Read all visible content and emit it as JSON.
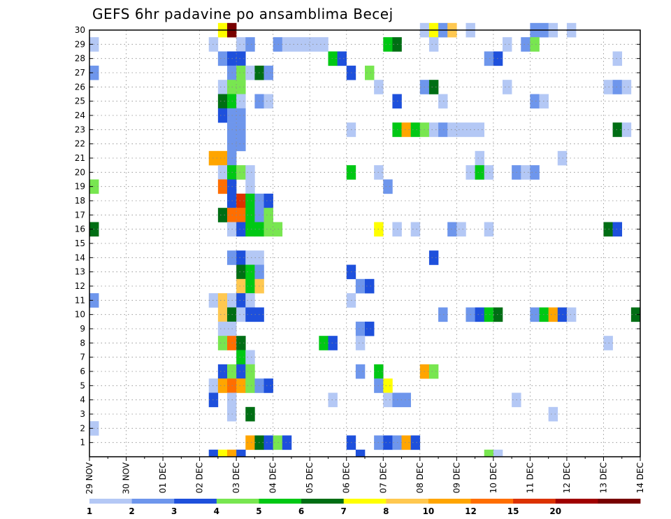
{
  "chart_data": {
    "type": "heatmap",
    "title": "GEFS 6hr padavine po ansamblima Becej",
    "xlabel": "",
    "ylabel": "",
    "x_tick_labels": [
      "29 NOV",
      "30 NOV",
      "01 DEC",
      "02 DEC",
      "03 DEC",
      "04 DEC",
      "05 DEC",
      "06 DEC",
      "07 DEC",
      "08 DEC",
      "09 DEC",
      "10 DEC",
      "11 DEC",
      "12 DEC",
      "13 DEC",
      "14 DEC"
    ],
    "x_unit": "6h step",
    "x_range": [
      0,
      60
    ],
    "y_tick_labels": [
      "1",
      "2",
      "3",
      "4",
      "5",
      "6",
      "7",
      "8",
      "9",
      "10",
      "11",
      "12",
      "13",
      "14",
      "15",
      "16",
      "17",
      "18",
      "19",
      "20",
      "21",
      "22",
      "23",
      "24",
      "25",
      "26",
      "27",
      "28",
      "29",
      "30"
    ],
    "y_range": [
      0,
      30
    ],
    "grid": true,
    "legend": {
      "placement": "bottom",
      "tick_labels": [
        "1",
        "2",
        "3",
        "4",
        "5",
        "6",
        "7",
        "8",
        "10",
        "12",
        "15",
        "20"
      ],
      "colors": [
        "#b4c8f5",
        "#6e96ec",
        "#1e50dc",
        "#78e650",
        "#00c814",
        "#006e14",
        "#ffff00",
        "#ffc850",
        "#ffa500",
        "#ff6e00",
        "#dc3200",
        "#a00000",
        "#780000"
      ]
    },
    "cells": [
      {
        "ens": 30,
        "step": 14,
        "cls": 6
      },
      {
        "ens": 30,
        "step": 15,
        "cls": 12
      },
      {
        "ens": 30,
        "step": 36,
        "cls": 0
      },
      {
        "ens": 30,
        "step": 37,
        "cls": 6
      },
      {
        "ens": 30,
        "step": 38,
        "cls": 1
      },
      {
        "ens": 30,
        "step": 39,
        "cls": 7
      },
      {
        "ens": 30,
        "step": 41,
        "cls": 0
      },
      {
        "ens": 30,
        "step": 48,
        "cls": 1
      },
      {
        "ens": 30,
        "step": 49,
        "cls": 1
      },
      {
        "ens": 30,
        "step": 50,
        "cls": 0
      },
      {
        "ens": 30,
        "step": 52,
        "cls": 0
      },
      {
        "ens": 29,
        "step": 0,
        "cls": 0
      },
      {
        "ens": 29,
        "step": 13,
        "cls": 0
      },
      {
        "ens": 29,
        "step": 16,
        "cls": 0
      },
      {
        "ens": 29,
        "step": 17,
        "cls": 1
      },
      {
        "ens": 29,
        "step": 20,
        "cls": 1
      },
      {
        "ens": 29,
        "step": 21,
        "cls": 0
      },
      {
        "ens": 29,
        "step": 22,
        "cls": 0
      },
      {
        "ens": 29,
        "step": 23,
        "cls": 0
      },
      {
        "ens": 29,
        "step": 24,
        "cls": 0
      },
      {
        "ens": 29,
        "step": 25,
        "cls": 0
      },
      {
        "ens": 29,
        "step": 32,
        "cls": 4
      },
      {
        "ens": 29,
        "step": 33,
        "cls": 5
      },
      {
        "ens": 29,
        "step": 37,
        "cls": 0
      },
      {
        "ens": 29,
        "step": 45,
        "cls": 0
      },
      {
        "ens": 29,
        "step": 47,
        "cls": 1
      },
      {
        "ens": 29,
        "step": 48,
        "cls": 3
      },
      {
        "ens": 28,
        "step": 14,
        "cls": 1
      },
      {
        "ens": 28,
        "step": 15,
        "cls": 2
      },
      {
        "ens": 28,
        "step": 16,
        "cls": 2
      },
      {
        "ens": 28,
        "step": 26,
        "cls": 4
      },
      {
        "ens": 28,
        "step": 27,
        "cls": 2
      },
      {
        "ens": 28,
        "step": 43,
        "cls": 1
      },
      {
        "ens": 28,
        "step": 44,
        "cls": 2
      },
      {
        "ens": 28,
        "step": 57,
        "cls": 0
      },
      {
        "ens": 27,
        "step": 0,
        "cls": 1
      },
      {
        "ens": 27,
        "step": 15,
        "cls": 1
      },
      {
        "ens": 27,
        "step": 16,
        "cls": 3
      },
      {
        "ens": 27,
        "step": 17,
        "cls": 0
      },
      {
        "ens": 27,
        "step": 18,
        "cls": 5
      },
      {
        "ens": 27,
        "step": 19,
        "cls": 1
      },
      {
        "ens": 27,
        "step": 28,
        "cls": 2
      },
      {
        "ens": 27,
        "step": 30,
        "cls": 3
      },
      {
        "ens": 26,
        "step": 14,
        "cls": 0
      },
      {
        "ens": 26,
        "step": 15,
        "cls": 3
      },
      {
        "ens": 26,
        "step": 16,
        "cls": 3
      },
      {
        "ens": 26,
        "step": 31,
        "cls": 0
      },
      {
        "ens": 26,
        "step": 36,
        "cls": 1
      },
      {
        "ens": 26,
        "step": 37,
        "cls": 5
      },
      {
        "ens": 26,
        "step": 45,
        "cls": 0
      },
      {
        "ens": 26,
        "step": 56,
        "cls": 0
      },
      {
        "ens": 26,
        "step": 57,
        "cls": 1
      },
      {
        "ens": 26,
        "step": 58,
        "cls": 0
      },
      {
        "ens": 25,
        "step": 14,
        "cls": 5
      },
      {
        "ens": 25,
        "step": 15,
        "cls": 4
      },
      {
        "ens": 25,
        "step": 16,
        "cls": 0
      },
      {
        "ens": 25,
        "step": 18,
        "cls": 1
      },
      {
        "ens": 25,
        "step": 19,
        "cls": 0
      },
      {
        "ens": 25,
        "step": 33,
        "cls": 2
      },
      {
        "ens": 25,
        "step": 38,
        "cls": 0
      },
      {
        "ens": 25,
        "step": 48,
        "cls": 1
      },
      {
        "ens": 25,
        "step": 49,
        "cls": 0
      },
      {
        "ens": 24,
        "step": 14,
        "cls": 2
      },
      {
        "ens": 24,
        "step": 15,
        "cls": 1
      },
      {
        "ens": 24,
        "step": 16,
        "cls": 1
      },
      {
        "ens": 23,
        "step": 15,
        "cls": 1
      },
      {
        "ens": 23,
        "step": 16,
        "cls": 1
      },
      {
        "ens": 23,
        "step": 28,
        "cls": 0
      },
      {
        "ens": 23,
        "step": 33,
        "cls": 4
      },
      {
        "ens": 23,
        "step": 34,
        "cls": 8
      },
      {
        "ens": 23,
        "step": 35,
        "cls": 4
      },
      {
        "ens": 23,
        "step": 36,
        "cls": 3
      },
      {
        "ens": 23,
        "step": 37,
        "cls": 0
      },
      {
        "ens": 23,
        "step": 38,
        "cls": 1
      },
      {
        "ens": 23,
        "step": 39,
        "cls": 0
      },
      {
        "ens": 23,
        "step": 40,
        "cls": 0
      },
      {
        "ens": 23,
        "step": 41,
        "cls": 0
      },
      {
        "ens": 23,
        "step": 42,
        "cls": 0
      },
      {
        "ens": 23,
        "step": 57,
        "cls": 5
      },
      {
        "ens": 23,
        "step": 58,
        "cls": 0
      },
      {
        "ens": 22,
        "step": 15,
        "cls": 1
      },
      {
        "ens": 22,
        "step": 16,
        "cls": 1
      },
      {
        "ens": 21,
        "step": 13,
        "cls": 8
      },
      {
        "ens": 21,
        "step": 14,
        "cls": 8
      },
      {
        "ens": 21,
        "step": 15,
        "cls": 1
      },
      {
        "ens": 21,
        "step": 42,
        "cls": 0
      },
      {
        "ens": 21,
        "step": 51,
        "cls": 0
      },
      {
        "ens": 20,
        "step": 14,
        "cls": 0
      },
      {
        "ens": 20,
        "step": 15,
        "cls": 4
      },
      {
        "ens": 20,
        "step": 16,
        "cls": 3
      },
      {
        "ens": 20,
        "step": 17,
        "cls": 0
      },
      {
        "ens": 20,
        "step": 28,
        "cls": 4
      },
      {
        "ens": 20,
        "step": 31,
        "cls": 0
      },
      {
        "ens": 20,
        "step": 41,
        "cls": 0
      },
      {
        "ens": 20,
        "step": 42,
        "cls": 4
      },
      {
        "ens": 20,
        "step": 43,
        "cls": 0
      },
      {
        "ens": 20,
        "step": 46,
        "cls": 1
      },
      {
        "ens": 20,
        "step": 47,
        "cls": 0
      },
      {
        "ens": 20,
        "step": 48,
        "cls": 1
      },
      {
        "ens": 19,
        "step": 0,
        "cls": 3
      },
      {
        "ens": 19,
        "step": 14,
        "cls": 9
      },
      {
        "ens": 19,
        "step": 15,
        "cls": 2
      },
      {
        "ens": 19,
        "step": 17,
        "cls": 0
      },
      {
        "ens": 19,
        "step": 32,
        "cls": 1
      },
      {
        "ens": 18,
        "step": 15,
        "cls": 2
      },
      {
        "ens": 18,
        "step": 16,
        "cls": 10
      },
      {
        "ens": 18,
        "step": 17,
        "cls": 4
      },
      {
        "ens": 18,
        "step": 18,
        "cls": 1
      },
      {
        "ens": 18,
        "step": 19,
        "cls": 2
      },
      {
        "ens": 17,
        "step": 14,
        "cls": 5
      },
      {
        "ens": 17,
        "step": 15,
        "cls": 9
      },
      {
        "ens": 17,
        "step": 16,
        "cls": 9
      },
      {
        "ens": 17,
        "step": 17,
        "cls": 4
      },
      {
        "ens": 17,
        "step": 18,
        "cls": 1
      },
      {
        "ens": 17,
        "step": 19,
        "cls": 3
      },
      {
        "ens": 16,
        "step": 0,
        "cls": 5
      },
      {
        "ens": 16,
        "step": 15,
        "cls": 0
      },
      {
        "ens": 16,
        "step": 16,
        "cls": 2
      },
      {
        "ens": 16,
        "step": 17,
        "cls": 4
      },
      {
        "ens": 16,
        "step": 18,
        "cls": 4
      },
      {
        "ens": 16,
        "step": 19,
        "cls": 3
      },
      {
        "ens": 16,
        "step": 20,
        "cls": 3
      },
      {
        "ens": 16,
        "step": 31,
        "cls": 6
      },
      {
        "ens": 16,
        "step": 33,
        "cls": 0
      },
      {
        "ens": 16,
        "step": 35,
        "cls": 0
      },
      {
        "ens": 16,
        "step": 39,
        "cls": 1
      },
      {
        "ens": 16,
        "step": 40,
        "cls": 0
      },
      {
        "ens": 16,
        "step": 43,
        "cls": 0
      },
      {
        "ens": 16,
        "step": 56,
        "cls": 5
      },
      {
        "ens": 16,
        "step": 57,
        "cls": 2
      },
      {
        "ens": 14,
        "step": 15,
        "cls": 1
      },
      {
        "ens": 14,
        "step": 16,
        "cls": 2
      },
      {
        "ens": 14,
        "step": 17,
        "cls": 0
      },
      {
        "ens": 14,
        "step": 18,
        "cls": 0
      },
      {
        "ens": 14,
        "step": 37,
        "cls": 2
      },
      {
        "ens": 13,
        "step": 16,
        "cls": 5
      },
      {
        "ens": 13,
        "step": 17,
        "cls": 4
      },
      {
        "ens": 13,
        "step": 18,
        "cls": 1
      },
      {
        "ens": 13,
        "step": 28,
        "cls": 2
      },
      {
        "ens": 12,
        "step": 16,
        "cls": 7
      },
      {
        "ens": 12,
        "step": 17,
        "cls": 4
      },
      {
        "ens": 12,
        "step": 18,
        "cls": 7
      },
      {
        "ens": 12,
        "step": 29,
        "cls": 1
      },
      {
        "ens": 12,
        "step": 30,
        "cls": 2
      },
      {
        "ens": 11,
        "step": 0,
        "cls": 1
      },
      {
        "ens": 11,
        "step": 13,
        "cls": 0
      },
      {
        "ens": 11,
        "step": 14,
        "cls": 7
      },
      {
        "ens": 11,
        "step": 15,
        "cls": 0
      },
      {
        "ens": 11,
        "step": 16,
        "cls": 2
      },
      {
        "ens": 11,
        "step": 17,
        "cls": 0
      },
      {
        "ens": 11,
        "step": 28,
        "cls": 0
      },
      {
        "ens": 10,
        "step": 14,
        "cls": 7
      },
      {
        "ens": 10,
        "step": 15,
        "cls": 5
      },
      {
        "ens": 10,
        "step": 16,
        "cls": 0
      },
      {
        "ens": 10,
        "step": 17,
        "cls": 2
      },
      {
        "ens": 10,
        "step": 18,
        "cls": 2
      },
      {
        "ens": 10,
        "step": 38,
        "cls": 1
      },
      {
        "ens": 10,
        "step": 41,
        "cls": 1
      },
      {
        "ens": 10,
        "step": 42,
        "cls": 2
      },
      {
        "ens": 10,
        "step": 43,
        "cls": 4
      },
      {
        "ens": 10,
        "step": 44,
        "cls": 5
      },
      {
        "ens": 10,
        "step": 48,
        "cls": 1
      },
      {
        "ens": 10,
        "step": 49,
        "cls": 4
      },
      {
        "ens": 10,
        "step": 50,
        "cls": 8
      },
      {
        "ens": 10,
        "step": 51,
        "cls": 2
      },
      {
        "ens": 10,
        "step": 52,
        "cls": 0
      },
      {
        "ens": 10,
        "step": 59,
        "cls": 5
      },
      {
        "ens": 9,
        "step": 14,
        "cls": 0
      },
      {
        "ens": 9,
        "step": 15,
        "cls": 0
      },
      {
        "ens": 9,
        "step": 29,
        "cls": 1
      },
      {
        "ens": 9,
        "step": 30,
        "cls": 2
      },
      {
        "ens": 8,
        "step": 14,
        "cls": 3
      },
      {
        "ens": 8,
        "step": 15,
        "cls": 9
      },
      {
        "ens": 8,
        "step": 16,
        "cls": 5
      },
      {
        "ens": 8,
        "step": 25,
        "cls": 4
      },
      {
        "ens": 8,
        "step": 26,
        "cls": 2
      },
      {
        "ens": 8,
        "step": 29,
        "cls": 0
      },
      {
        "ens": 8,
        "step": 56,
        "cls": 0
      },
      {
        "ens": 7,
        "step": 16,
        "cls": 4
      },
      {
        "ens": 7,
        "step": 17,
        "cls": 0
      },
      {
        "ens": 6,
        "step": 14,
        "cls": 2
      },
      {
        "ens": 6,
        "step": 15,
        "cls": 3
      },
      {
        "ens": 6,
        "step": 16,
        "cls": 2
      },
      {
        "ens": 6,
        "step": 17,
        "cls": 3
      },
      {
        "ens": 6,
        "step": 29,
        "cls": 1
      },
      {
        "ens": 6,
        "step": 31,
        "cls": 4
      },
      {
        "ens": 6,
        "step": 36,
        "cls": 8
      },
      {
        "ens": 6,
        "step": 37,
        "cls": 3
      },
      {
        "ens": 5,
        "step": 13,
        "cls": 0
      },
      {
        "ens": 5,
        "step": 14,
        "cls": 8
      },
      {
        "ens": 5,
        "step": 15,
        "cls": 9
      },
      {
        "ens": 5,
        "step": 16,
        "cls": 8
      },
      {
        "ens": 5,
        "step": 17,
        "cls": 3
      },
      {
        "ens": 5,
        "step": 18,
        "cls": 1
      },
      {
        "ens": 5,
        "step": 19,
        "cls": 2
      },
      {
        "ens": 5,
        "step": 31,
        "cls": 1
      },
      {
        "ens": 5,
        "step": 32,
        "cls": 6
      },
      {
        "ens": 4,
        "step": 13,
        "cls": 2
      },
      {
        "ens": 4,
        "step": 15,
        "cls": 0
      },
      {
        "ens": 4,
        "step": 26,
        "cls": 0
      },
      {
        "ens": 4,
        "step": 32,
        "cls": 0
      },
      {
        "ens": 4,
        "step": 33,
        "cls": 1
      },
      {
        "ens": 4,
        "step": 34,
        "cls": 1
      },
      {
        "ens": 4,
        "step": 46,
        "cls": 0
      },
      {
        "ens": 3,
        "step": 15,
        "cls": 0
      },
      {
        "ens": 3,
        "step": 17,
        "cls": 5
      },
      {
        "ens": 3,
        "step": 50,
        "cls": 0
      },
      {
        "ens": 2,
        "step": 0,
        "cls": 0
      },
      {
        "ens": 1,
        "step": 17,
        "cls": 8
      },
      {
        "ens": 1,
        "step": 18,
        "cls": 5
      },
      {
        "ens": 1,
        "step": 19,
        "cls": 2
      },
      {
        "ens": 1,
        "step": 20,
        "cls": 3
      },
      {
        "ens": 1,
        "step": 21,
        "cls": 2
      },
      {
        "ens": 1,
        "step": 28,
        "cls": 2
      },
      {
        "ens": 1,
        "step": 31,
        "cls": 1
      },
      {
        "ens": 1,
        "step": 32,
        "cls": 2
      },
      {
        "ens": 1,
        "step": 33,
        "cls": 1
      },
      {
        "ens": 1,
        "step": 34,
        "cls": 8
      },
      {
        "ens": 1,
        "step": 35,
        "cls": 2
      },
      {
        "ens": 0,
        "step": 13,
        "cls": 2
      },
      {
        "ens": 0,
        "step": 14,
        "cls": 6
      },
      {
        "ens": 0,
        "step": 15,
        "cls": 8
      },
      {
        "ens": 0,
        "step": 16,
        "cls": 2
      },
      {
        "ens": 0,
        "step": 29,
        "cls": 2
      },
      {
        "ens": 0,
        "step": 43,
        "cls": 3
      },
      {
        "ens": 0,
        "step": 44,
        "cls": 0
      }
    ]
  }
}
